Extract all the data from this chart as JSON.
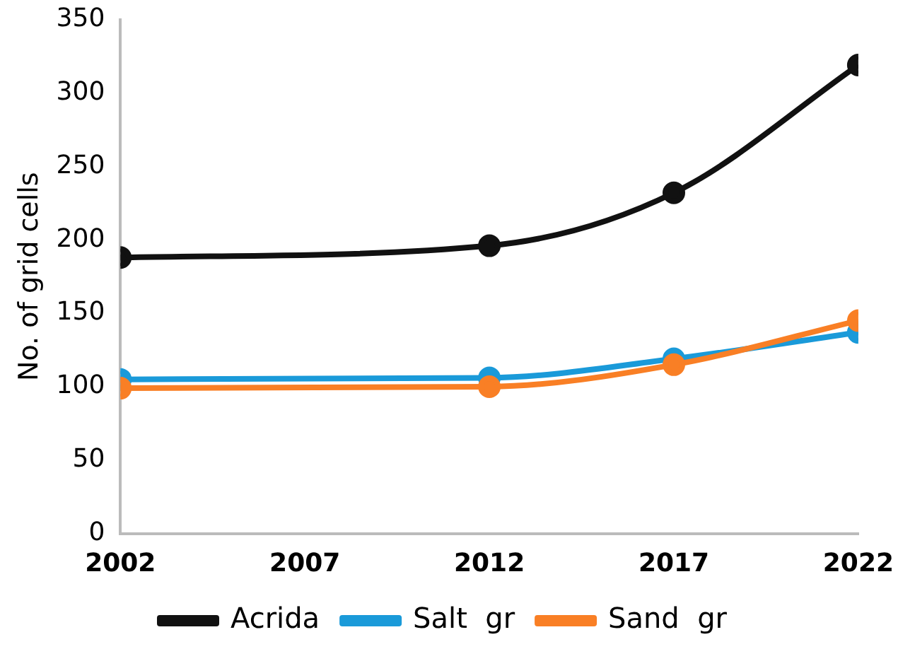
{
  "chart_data": {
    "type": "line",
    "ylabel": "No. of grid cells",
    "x": [
      2002,
      2012,
      2017,
      2022
    ],
    "xlim": [
      2002,
      2022
    ],
    "xticks": [
      2002,
      2007,
      2012,
      2017,
      2022
    ],
    "ylim": [
      0,
      350
    ],
    "yticks": [
      0,
      50,
      100,
      150,
      200,
      250,
      300,
      350
    ],
    "series": [
      {
        "name": "Acrida",
        "color": "#111111",
        "values": [
          188,
          196,
          232,
          319
        ]
      },
      {
        "name": "Salt  gr",
        "color": "#1a9ad9",
        "values": [
          105,
          106,
          119,
          137
        ]
      },
      {
        "name": "Sand  gr",
        "color": "#f97f25",
        "values": [
          99,
          100,
          115,
          145
        ]
      }
    ],
    "marker": "circle",
    "line_style": "solid",
    "grid": false,
    "legend": "bottom"
  }
}
